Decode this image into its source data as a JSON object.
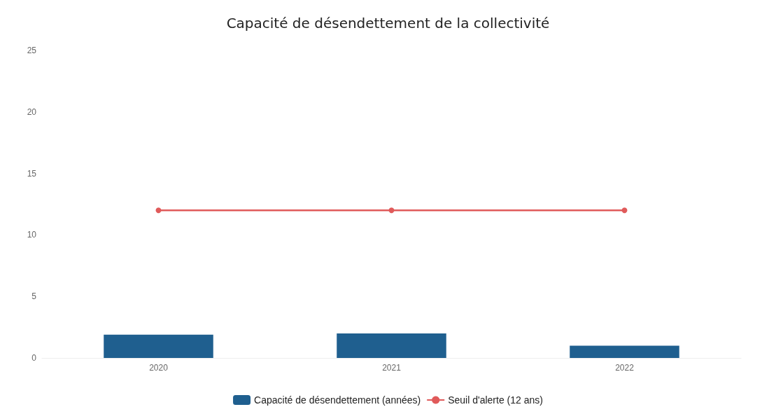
{
  "chart_data": {
    "type": "bar",
    "title": "Capacité de désendettement de la collectivité",
    "categories": [
      "2020",
      "2021",
      "2022"
    ],
    "series": [
      {
        "name": "Capacité de désendettement (années)",
        "color": "#1f5f8f",
        "values": [
          1.9,
          2.0,
          1.0
        ]
      },
      {
        "name": "Seuil d'alerte (12 ans)",
        "type": "line",
        "color": "#e05a5a",
        "values": [
          12,
          12,
          12
        ]
      }
    ],
    "ylim": [
      0,
      25
    ],
    "yticks": [
      0,
      5,
      10,
      15,
      20,
      25
    ],
    "grid": false,
    "legend": "bottom",
    "marker": "circle",
    "line_style": "solid"
  }
}
